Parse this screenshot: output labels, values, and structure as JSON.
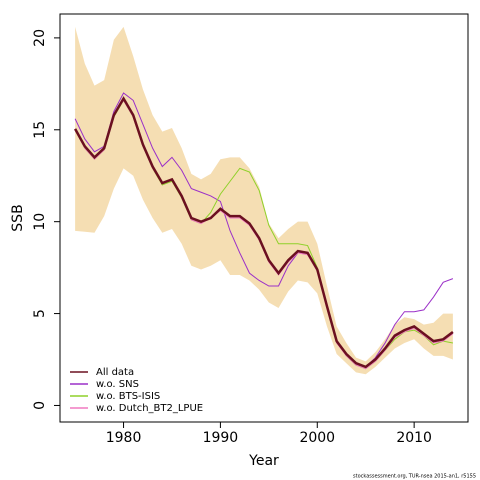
{
  "chart_data": {
    "type": "line",
    "x_label": "Year",
    "y_label": "SSB",
    "footer": "stockassessment.org, TUR-nsea 2015-an1, r5155",
    "x": [
      1975,
      1976,
      1977,
      1978,
      1979,
      1980,
      1981,
      1982,
      1983,
      1984,
      1985,
      1986,
      1987,
      1988,
      1989,
      1990,
      1991,
      1992,
      1993,
      1994,
      1995,
      1996,
      1997,
      1998,
      1999,
      2000,
      2001,
      2002,
      2003,
      2004,
      2005,
      2006,
      2007,
      2008,
      2009,
      2010,
      2011,
      2012,
      2013,
      2014
    ],
    "xlim": [
      1973.44,
      2015.56
    ],
    "xticks": [
      1980,
      1990,
      2000,
      2010
    ],
    "ylim": [
      -0.9,
      21.3
    ],
    "yticks": [
      0,
      5,
      10,
      15,
      20
    ],
    "band": {
      "color": "#f5deb3",
      "upper": [
        20.6,
        18.6,
        17.4,
        17.7,
        19.9,
        20.6,
        19.0,
        17.2,
        15.8,
        14.9,
        15.1,
        14.0,
        12.6,
        12.3,
        12.6,
        13.4,
        13.5,
        13.5,
        12.9,
        11.9,
        9.9,
        9.1,
        9.6,
        10.0,
        10.0,
        8.8,
        6.5,
        4.3,
        3.4,
        2.6,
        2.4,
        2.9,
        3.6,
        4.4,
        4.8,
        4.7,
        4.4,
        4.5,
        5.0,
        5.0
      ],
      "lower": [
        9.5,
        9.45,
        9.4,
        10.3,
        11.8,
        12.9,
        12.5,
        11.2,
        10.2,
        9.4,
        9.6,
        8.8,
        7.6,
        7.4,
        7.6,
        7.9,
        7.1,
        7.1,
        6.8,
        6.3,
        5.6,
        5.3,
        6.2,
        6.8,
        6.7,
        6.1,
        4.3,
        2.8,
        2.3,
        1.8,
        1.7,
        2.1,
        2.6,
        3.1,
        3.4,
        3.6,
        3.1,
        2.7,
        2.7,
        2.5
      ]
    },
    "series": [
      {
        "name": "All data",
        "color": "#6b1020",
        "values": [
          15.05,
          14.1,
          13.5,
          14.0,
          15.8,
          16.7,
          15.8,
          14.2,
          13.0,
          12.1,
          12.3,
          11.4,
          10.2,
          10.0,
          10.2,
          10.7,
          10.3,
          10.3,
          9.9,
          9.1,
          7.9,
          7.2,
          7.9,
          8.4,
          8.3,
          7.4,
          5.4,
          3.5,
          2.8,
          2.3,
          2.1,
          2.5,
          3.1,
          3.8,
          4.1,
          4.3,
          3.9,
          3.5,
          3.6,
          4.0
        ]
      },
      {
        "name": "w.o. SNS",
        "color": "#9b30c8",
        "values": [
          15.6,
          14.5,
          13.8,
          14.1,
          16.0,
          17.0,
          16.6,
          15.3,
          14.0,
          13.0,
          13.5,
          12.8,
          11.8,
          11.6,
          11.4,
          11.1,
          9.5,
          8.3,
          7.2,
          6.8,
          6.5,
          6.5,
          7.6,
          8.3,
          8.3,
          7.4,
          5.3,
          3.5,
          2.7,
          2.2,
          2.1,
          2.6,
          3.4,
          4.4,
          5.1,
          5.1,
          5.2,
          5.9,
          6.7,
          6.9
        ]
      },
      {
        "name": "w.o. BTS-ISIS",
        "color": "#8fd12a",
        "values": [
          15.0,
          14.0,
          13.4,
          13.9,
          15.7,
          16.6,
          15.7,
          14.1,
          12.9,
          12.0,
          12.2,
          11.3,
          10.1,
          9.9,
          10.5,
          11.5,
          12.2,
          12.9,
          12.7,
          11.7,
          9.8,
          8.8,
          8.8,
          8.8,
          8.7,
          7.5,
          5.3,
          3.5,
          2.7,
          2.2,
          2.0,
          2.4,
          3.0,
          3.6,
          4.0,
          4.1,
          3.8,
          3.3,
          3.5,
          3.4
        ]
      },
      {
        "name": "w.o. Dutch_BT2_LPUE",
        "color": "#f07ac0",
        "values": [
          15.0,
          14.0,
          13.4,
          13.9,
          15.8,
          16.6,
          15.7,
          14.1,
          12.9,
          12.1,
          12.3,
          11.4,
          10.1,
          9.9,
          10.2,
          10.6,
          10.2,
          10.2,
          9.8,
          9.0,
          7.8,
          7.1,
          7.8,
          8.3,
          8.2,
          7.3,
          5.3,
          3.4,
          2.7,
          2.2,
          2.0,
          2.4,
          3.0,
          3.7,
          4.0,
          4.2,
          3.8,
          3.4,
          3.5,
          3.9
        ]
      }
    ]
  }
}
